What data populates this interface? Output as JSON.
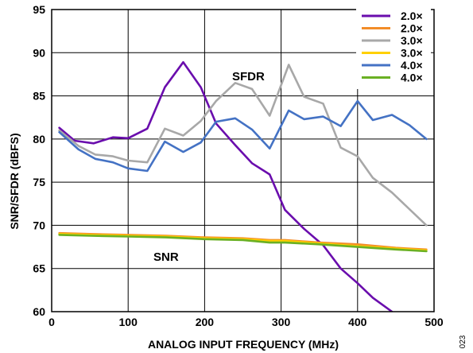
{
  "chart_data": {
    "type": "line",
    "xlabel": "ANALOG INPUT FREQUENCY (MHz)",
    "ylabel": "SNR/SFDR (dBFS)",
    "xlim": [
      0,
      500
    ],
    "ylim": [
      60,
      95
    ],
    "x_ticks": [
      "0",
      "100",
      "200",
      "300",
      "400",
      "500"
    ],
    "y_ticks": [
      "60",
      "65",
      "70",
      "75",
      "80",
      "85",
      "90",
      "95"
    ],
    "grid": true,
    "legend_position": "top-right",
    "annotations": [
      "SFDR",
      "SNR"
    ],
    "figure_id": "023",
    "series": [
      {
        "name": "2.0×",
        "color": "#6a0dad",
        "x": [
          10,
          30,
          55,
          80,
          100,
          125,
          148,
          172,
          195,
          215,
          240,
          262,
          285,
          305,
          330,
          355,
          378,
          400,
          420,
          445
        ],
        "y": [
          81.3,
          79.8,
          79.5,
          80.2,
          80.1,
          81.2,
          86.0,
          88.9,
          86.0,
          81.8,
          79.3,
          77.2,
          75.9,
          71.8,
          69.6,
          67.7,
          65.0,
          63.3,
          61.6,
          60.0
        ]
      },
      {
        "name": "2.0×",
        "color": "#f28c28",
        "x": [
          10,
          50,
          100,
          150,
          200,
          250,
          285,
          305,
          350,
          400,
          450,
          490
        ],
        "y": [
          69.1,
          69.0,
          68.9,
          68.8,
          68.6,
          68.5,
          68.3,
          68.3,
          68.0,
          67.8,
          67.4,
          67.2
        ]
      },
      {
        "name": "3.0×",
        "color": "#a8a8a8",
        "x": [
          10,
          35,
          57,
          80,
          100,
          125,
          148,
          172,
          195,
          215,
          240,
          262,
          285,
          310,
          330,
          355,
          378,
          400,
          420,
          445,
          490
        ],
        "y": [
          81.0,
          79.2,
          78.2,
          78.0,
          77.5,
          77.3,
          81.2,
          80.4,
          82.1,
          84.4,
          86.5,
          85.8,
          82.7,
          88.6,
          84.9,
          84.1,
          79.0,
          78.0,
          75.5,
          73.8,
          70.0
        ]
      },
      {
        "name": "3.0×",
        "color": "#ffd000",
        "x": [
          10,
          50,
          100,
          150,
          200,
          250,
          285,
          305,
          350,
          400,
          450,
          490
        ],
        "y": [
          69.0,
          68.9,
          68.8,
          68.7,
          68.5,
          68.4,
          68.2,
          68.2,
          67.9,
          67.6,
          67.3,
          67.1
        ]
      },
      {
        "name": "4.0×",
        "color": "#4472c4",
        "x": [
          10,
          35,
          57,
          80,
          100,
          125,
          148,
          172,
          195,
          215,
          240,
          262,
          285,
          310,
          330,
          355,
          378,
          400,
          420,
          445,
          468,
          490
        ],
        "y": [
          80.8,
          78.8,
          77.7,
          77.3,
          76.6,
          76.3,
          79.7,
          78.5,
          79.6,
          82.0,
          82.4,
          81.1,
          78.9,
          83.3,
          82.3,
          82.6,
          81.5,
          84.4,
          82.2,
          82.8,
          81.6,
          80.0
        ]
      },
      {
        "name": "4.0×",
        "color": "#6ab023",
        "x": [
          10,
          50,
          100,
          150,
          200,
          250,
          285,
          305,
          350,
          400,
          450,
          490
        ],
        "y": [
          68.9,
          68.8,
          68.7,
          68.6,
          68.4,
          68.3,
          68.0,
          68.0,
          67.8,
          67.5,
          67.2,
          67.0
        ]
      }
    ]
  }
}
